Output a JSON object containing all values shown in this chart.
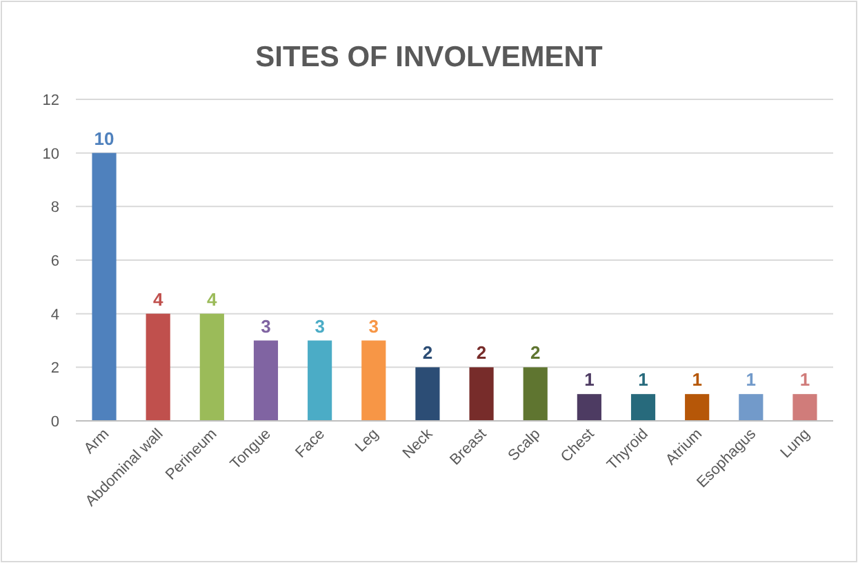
{
  "chart_data": {
    "type": "bar",
    "title": "SITES OF INVOLVEMENT",
    "categories": [
      "Arm",
      "Abdominal wall",
      "Perineum",
      "Tongue",
      "Face",
      "Leg",
      "Neck",
      "Breast",
      "Scalp",
      "Chest",
      "Thyroid",
      "Atrium",
      "Esophagus",
      "Lung"
    ],
    "values": [
      10,
      4,
      4,
      3,
      3,
      3,
      2,
      2,
      2,
      1,
      1,
      1,
      1,
      1
    ],
    "colors": [
      "#4f81bd",
      "#c0504d",
      "#9bbb59",
      "#8064a2",
      "#4bacc6",
      "#f79646",
      "#2c4d75",
      "#772c2a",
      "#5f7530",
      "#4d3b62",
      "#276a7c",
      "#b65708",
      "#729aca",
      "#d07c7a"
    ],
    "ylim": [
      0,
      12
    ],
    "yticks": [
      0,
      2,
      4,
      6,
      8,
      10,
      12
    ],
    "grid": "y",
    "data_labels": true
  }
}
